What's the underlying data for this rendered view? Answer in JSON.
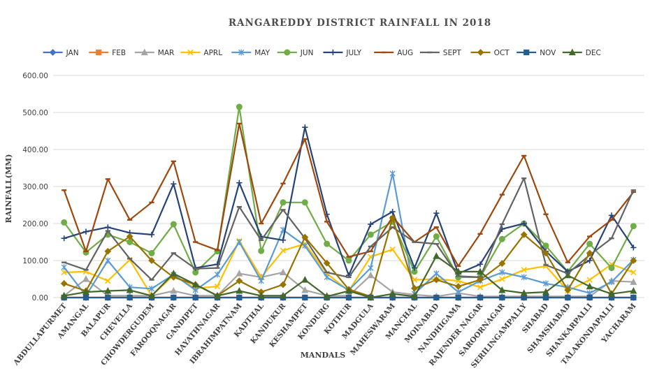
{
  "chart_data": {
    "type": "line",
    "title": "RANGAREDDY DISTRICT RAINFALL IN 2018",
    "xlabel": "MANDALS",
    "ylabel": "RAINFALL(MM)",
    "ylim": [
      0,
      600
    ],
    "yticks": [
      "0.00",
      "100.00",
      "200.00",
      "300.00",
      "400.00",
      "500.00",
      "600.00"
    ],
    "grid": true,
    "legend_position": "top",
    "categories": [
      "ABDULLAPURMET",
      "AMANGAL",
      "BALAPUR",
      "CHEVELLA",
      "CHOWDERGUDEM",
      "FAROOQNAGAR",
      "GANDIPET",
      "HAYATHNAGAR",
      "IBRAHIMPATNAM",
      "KADTHAL",
      "KANDUKUR",
      "KESHAMPET",
      "KONDURG",
      "KOTHUR",
      "MADGULA",
      "MAHESWARAM",
      "MANCHAL",
      "MOINABAD",
      "NANDHIGAMA",
      "RAJENDER NAGAR",
      "SAROORNAGAR",
      "SERILINGAMPALLY",
      "SHABAD",
      "SHAMSHABAD",
      "SHANKARPALLI",
      "TALAKONDAPALLI",
      "YACHARAM"
    ],
    "series": [
      {
        "name": "JAN",
        "color": "#4472c4",
        "marker": "diamond",
        "values": [
          0,
          0,
          0,
          0,
          0,
          0,
          0,
          0,
          0,
          0,
          0,
          0,
          0,
          0,
          0,
          0,
          0,
          0,
          0,
          0,
          0,
          0,
          0,
          0,
          0,
          0,
          0
        ]
      },
      {
        "name": "FEB",
        "color": "#ed7d31",
        "marker": "square",
        "values": [
          0,
          0,
          0,
          0,
          0,
          0,
          0,
          0,
          0,
          0,
          0,
          0,
          0,
          0,
          0,
          0,
          0,
          0,
          0,
          0,
          0,
          0,
          0,
          0,
          0,
          0,
          0
        ]
      },
      {
        "name": "MAR",
        "color": "#a5a5a5",
        "marker": "triangle",
        "values": [
          5,
          50,
          5,
          5,
          5,
          18,
          5,
          5,
          65,
          55,
          68,
          20,
          5,
          5,
          60,
          15,
          8,
          3,
          12,
          3,
          3,
          3,
          3,
          3,
          3,
          45,
          42
        ]
      },
      {
        "name": "APRL",
        "color": "#ffc000",
        "marker": "x",
        "values": [
          68,
          70,
          45,
          102,
          5,
          60,
          25,
          30,
          153,
          55,
          127,
          145,
          65,
          18,
          110,
          130,
          48,
          50,
          45,
          28,
          50,
          75,
          85,
          18,
          48,
          90,
          68
        ]
      },
      {
        "name": "MAY",
        "color": "#5b9bd5",
        "marker": "star",
        "values": [
          82,
          5,
          100,
          28,
          24,
          62,
          20,
          62,
          150,
          45,
          183,
          140,
          55,
          20,
          80,
          335,
          10,
          65,
          15,
          45,
          68,
          55,
          38,
          28,
          12,
          42,
          102
        ]
      },
      {
        "name": "JUN",
        "color": "#70ad47",
        "marker": "circle",
        "values": [
          203,
          122,
          170,
          150,
          120,
          198,
          68,
          125,
          515,
          126,
          257,
          257,
          145,
          100,
          170,
          205,
          70,
          165,
          55,
          55,
          158,
          200,
          140,
          70,
          145,
          80,
          193
        ]
      },
      {
        "name": "JULY",
        "color": "#264478",
        "marker": "plus",
        "values": [
          160,
          178,
          190,
          175,
          170,
          307,
          80,
          90,
          310,
          165,
          155,
          460,
          225,
          60,
          198,
          232,
          80,
          228,
          65,
          90,
          185,
          200,
          125,
          70,
          100,
          222,
          135
        ]
      },
      {
        "name": "AUG",
        "color": "#9e480e",
        "marker": "dash",
        "values": [
          290,
          125,
          320,
          210,
          257,
          368,
          150,
          128,
          470,
          200,
          308,
          428,
          205,
          110,
          125,
          218,
          150,
          190,
          85,
          172,
          278,
          383,
          225,
          95,
          165,
          210,
          285
        ]
      },
      {
        "name": "SEPT",
        "color": "#636363",
        "marker": "dash",
        "values": [
          95,
          75,
          180,
          105,
          48,
          120,
          78,
          80,
          245,
          155,
          237,
          160,
          68,
          55,
          138,
          190,
          150,
          145,
          58,
          55,
          198,
          322,
          88,
          65,
          115,
          160,
          290
        ]
      },
      {
        "name": "OCT",
        "color": "#997300",
        "marker": "diamond",
        "values": [
          38,
          18,
          125,
          165,
          100,
          55,
          35,
          5,
          45,
          15,
          35,
          163,
          93,
          22,
          3,
          215,
          25,
          48,
          30,
          48,
          92,
          170,
          120,
          20,
          120,
          10,
          100
        ]
      },
      {
        "name": "NOV",
        "color": "#255e91",
        "marker": "square",
        "values": [
          0,
          0,
          0,
          0,
          0,
          0,
          0,
          0,
          0,
          0,
          0,
          0,
          0,
          0,
          0,
          0,
          0,
          0,
          0,
          0,
          0,
          0,
          0,
          0,
          0,
          0,
          0
        ]
      },
      {
        "name": "DEC",
        "color": "#43682b",
        "marker": "triangle",
        "values": [
          5,
          15,
          18,
          20,
          5,
          65,
          35,
          5,
          18,
          5,
          5,
          48,
          3,
          18,
          0,
          10,
          3,
          112,
          70,
          70,
          20,
          12,
          15,
          60,
          30,
          10,
          18
        ]
      }
    ]
  }
}
